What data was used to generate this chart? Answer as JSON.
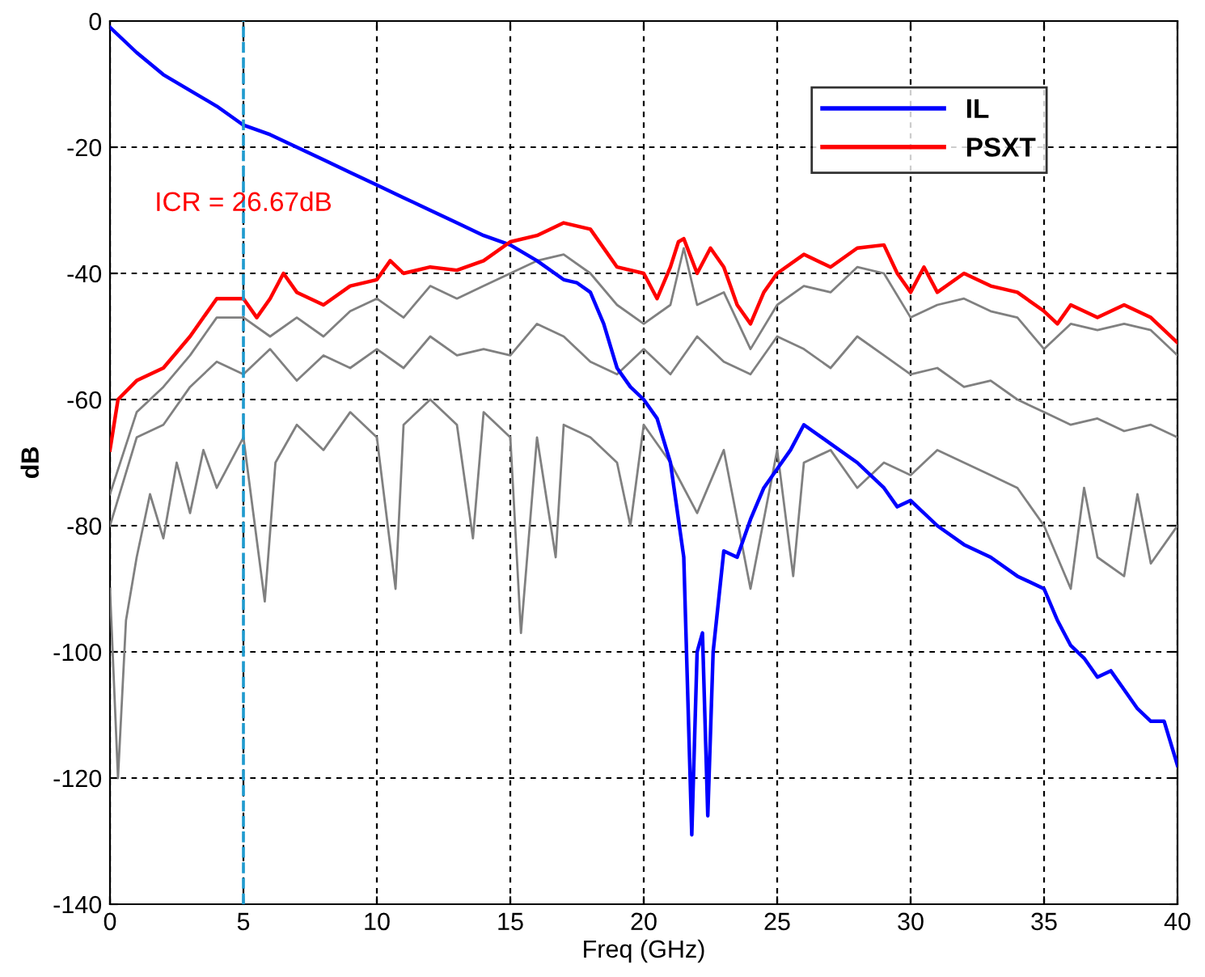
{
  "chart_data": {
    "type": "line",
    "xlabel": "Freq (GHz)",
    "ylabel": "dB",
    "xlim": [
      0,
      40
    ],
    "ylim": [
      -140,
      0
    ],
    "xticks": [
      0,
      5,
      10,
      15,
      20,
      25,
      30,
      35,
      40
    ],
    "yticks": [
      -140,
      -120,
      -100,
      -80,
      -60,
      -40,
      -20,
      0
    ],
    "grid": true,
    "legend": "top right",
    "line_style": "solid",
    "marker": "none",
    "annotations": [
      {
        "text": "ICR = 26.67dB",
        "x": 5,
        "y": -29
      }
    ],
    "ref_lines": [
      {
        "axis": "x",
        "value": 5,
        "color": "#1f9bcf",
        "line_style": "dashed"
      }
    ],
    "series": [
      {
        "color": "#808080",
        "x": [
          0,
          1,
          2,
          3,
          4,
          5,
          6,
          7,
          8,
          9,
          10,
          11,
          12,
          13,
          14,
          15,
          16,
          17,
          18,
          19,
          20,
          21,
          21.5,
          22,
          23,
          24,
          25,
          26,
          27,
          28,
          29,
          30,
          31,
          32,
          33,
          34,
          35,
          36,
          37,
          38,
          39,
          40
        ],
        "values": [
          -75,
          -62,
          -58,
          -53,
          -47,
          -47,
          -50,
          -47,
          -50,
          -46,
          -44,
          -47,
          -42,
          -44,
          -42,
          -40,
          -38,
          -37,
          -40,
          -45,
          -48,
          -45,
          -36,
          -45,
          -43,
          -52,
          -45,
          -42,
          -43,
          -39,
          -40,
          -47,
          -45,
          -44,
          -46,
          -47,
          -52,
          -48,
          -49,
          -48,
          -49,
          -53
        ]
      },
      {
        "color": "#808080",
        "x": [
          0,
          1,
          2,
          3,
          4,
          5,
          6,
          7,
          8,
          9,
          10,
          11,
          12,
          13,
          14,
          15,
          16,
          17,
          18,
          19,
          20,
          21,
          22,
          23,
          24,
          25,
          26,
          27,
          28,
          29,
          30,
          31,
          32,
          33,
          34,
          35,
          36,
          37,
          38,
          39,
          40
        ],
        "values": [
          -80,
          -66,
          -64,
          -58,
          -54,
          -56,
          -52,
          -57,
          -53,
          -55,
          -52,
          -55,
          -50,
          -53,
          -52,
          -53,
          -48,
          -50,
          -54,
          -56,
          -52,
          -56,
          -50,
          -54,
          -56,
          -50,
          -52,
          -55,
          -50,
          -53,
          -56,
          -55,
          -58,
          -57,
          -60,
          -62,
          -64,
          -63,
          -65,
          -64,
          -66
        ]
      },
      {
        "color": "#808080",
        "x": [
          0,
          0.3,
          0.6,
          1,
          1.5,
          2,
          2.5,
          3,
          3.5,
          4,
          5,
          5.8,
          6.2,
          7,
          8,
          9,
          10,
          10.7,
          11,
          12,
          13,
          13.6,
          14,
          15,
          15.4,
          16,
          16.7,
          17,
          18,
          19,
          19.5,
          20,
          21,
          22,
          23,
          24,
          25,
          25.6,
          26,
          27,
          28,
          29,
          30,
          31,
          32,
          33,
          34,
          35,
          36,
          36.5,
          37,
          38,
          38.5,
          39,
          40
        ],
        "values": [
          -90,
          -120,
          -95,
          -85,
          -75,
          -82,
          -70,
          -78,
          -68,
          -74,
          -66,
          -92,
          -70,
          -64,
          -68,
          -62,
          -66,
          -90,
          -64,
          -60,
          -64,
          -82,
          -62,
          -66,
          -97,
          -66,
          -85,
          -64,
          -66,
          -70,
          -80,
          -64,
          -70,
          -78,
          -68,
          -90,
          -68,
          -88,
          -70,
          -68,
          -74,
          -70,
          -72,
          -68,
          -70,
          -72,
          -74,
          -80,
          -90,
          -74,
          -85,
          -88,
          -75,
          -86,
          -80
        ]
      },
      {
        "name": "IL",
        "color": "#0000ff",
        "x": [
          0,
          1,
          2,
          3,
          4,
          5,
          6,
          7,
          8,
          9,
          10,
          11,
          12,
          13,
          14,
          15,
          16,
          17,
          17.5,
          18,
          18.5,
          19,
          19.5,
          20,
          20.5,
          21,
          21.5,
          21.8,
          22,
          22.2,
          22.4,
          22.6,
          23,
          23.5,
          24,
          24.5,
          25,
          25.5,
          26,
          27,
          28,
          29,
          29.5,
          30,
          31,
          32,
          33,
          34,
          35,
          35.5,
          36,
          36.5,
          37,
          37.5,
          38,
          38.5,
          39,
          39.5,
          40
        ],
        "values": [
          -1,
          -5,
          -8.5,
          -11,
          -13.5,
          -16.5,
          -18,
          -20,
          -22,
          -24,
          -26,
          -28,
          -30,
          -32,
          -34,
          -35.5,
          -38,
          -41,
          -41.5,
          -43,
          -48,
          -55,
          -58,
          -60,
          -63,
          -70,
          -85,
          -129,
          -100,
          -97,
          -126,
          -100,
          -84,
          -85,
          -79,
          -74,
          -71,
          -68,
          -64,
          -67,
          -70,
          -74,
          -77,
          -76,
          -80,
          -83,
          -85,
          -88,
          -90,
          -95,
          -99,
          -101,
          -104,
          -103,
          -106,
          -109,
          -111,
          -111,
          -118
        ]
      },
      {
        "name": "PSXT",
        "color": "#ff0000",
        "x": [
          0,
          0.3,
          1,
          2,
          3,
          4,
          5,
          5.5,
          6,
          6.5,
          7,
          8,
          9,
          10,
          10.5,
          11,
          12,
          13,
          14,
          15,
          16,
          17,
          18,
          19,
          20,
          20.5,
          21,
          21.3,
          21.5,
          22,
          22.5,
          23,
          23.5,
          24,
          24.5,
          25,
          26,
          27,
          28,
          29,
          29.5,
          30,
          30.5,
          31,
          32,
          33,
          34,
          35,
          35.5,
          36,
          37,
          38,
          39,
          40
        ],
        "values": [
          -68,
          -60,
          -57,
          -55,
          -50,
          -44,
          -44,
          -47,
          -44,
          -40,
          -43,
          -45,
          -42,
          -41,
          -38,
          -40,
          -39,
          -39.5,
          -38,
          -35,
          -34,
          -32,
          -33,
          -39,
          -40,
          -44,
          -39,
          -35,
          -34.5,
          -40,
          -36,
          -39,
          -45,
          -48,
          -43,
          -40,
          -37,
          -39,
          -36,
          -35.5,
          -40,
          -43,
          -39,
          -43,
          -40,
          -42,
          -43,
          -46,
          -48,
          -45,
          -47,
          -45,
          -47,
          -51
        ]
      }
    ]
  }
}
